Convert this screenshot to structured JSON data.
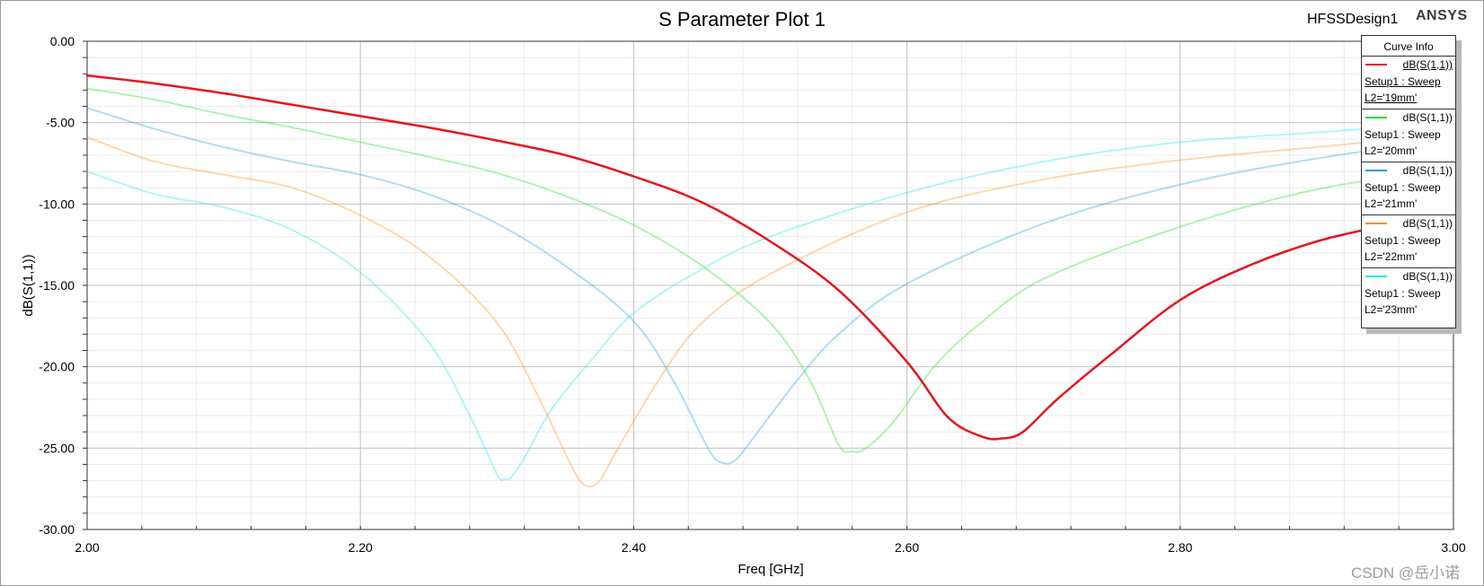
{
  "header": {
    "title": "S Parameter Plot 1",
    "design": "HFSSDesign1",
    "brand": "ANSYS"
  },
  "watermark": "CSDN @岳小诺",
  "legend": {
    "title": "Curve Info",
    "items": [
      {
        "name": "dB(S(1,1))",
        "line1": "Setup1 : Sweep",
        "line2": "L2='19mm'",
        "color": "#e8141c",
        "selected": true
      },
      {
        "name": "dB(S(1,1))",
        "line1": "Setup1 : Sweep",
        "line2": "L2='20mm'",
        "color": "#1edc1e",
        "selected": false
      },
      {
        "name": "dB(S(1,1))",
        "line1": "Setup1 : Sweep",
        "line2": "L2='21mm'",
        "color": "#1e9ed8",
        "selected": false
      },
      {
        "name": "dB(S(1,1))",
        "line1": "Setup1 : Sweep",
        "line2": "L2='22mm'",
        "color": "#ff8c1a",
        "selected": false
      },
      {
        "name": "dB(S(1,1))",
        "line1": "Setup1 : Sweep",
        "line2": "L2='23mm'",
        "color": "#1ee6e6",
        "selected": false
      }
    ]
  },
  "chart_data": {
    "type": "line",
    "title": "S Parameter Plot 1",
    "xlabel": "Freq [GHz]",
    "ylabel": "dB(S(1,1))",
    "xlim": [
      2.0,
      3.0
    ],
    "ylim": [
      -30.0,
      0.0
    ],
    "x_ticks": [
      "2.00",
      "2.20",
      "2.40",
      "2.60",
      "2.80",
      "3.00"
    ],
    "y_ticks": [
      "0.00",
      "-5.00",
      "-10.00",
      "-15.00",
      "-20.00",
      "-25.00",
      "-30.00"
    ],
    "grid": true,
    "legend_position": "top-right",
    "series": [
      {
        "name": "dB(S(1,1)) Setup1 : Sweep L2='23mm'",
        "color": "#1ee6e6",
        "faded": true,
        "points": [
          [
            2.0,
            -8.0
          ],
          [
            2.05,
            -9.4
          ],
          [
            2.1,
            -10.2
          ],
          [
            2.15,
            -11.6
          ],
          [
            2.2,
            -14.2
          ],
          [
            2.25,
            -18.5
          ],
          [
            2.28,
            -23.0
          ],
          [
            2.3,
            -26.6
          ],
          [
            2.305,
            -26.9
          ],
          [
            2.31,
            -26.8
          ],
          [
            2.32,
            -25.6
          ],
          [
            2.34,
            -22.6
          ],
          [
            2.37,
            -19.5
          ],
          [
            2.4,
            -16.7
          ],
          [
            2.45,
            -14.0
          ],
          [
            2.5,
            -12.0
          ],
          [
            2.6,
            -9.3
          ],
          [
            2.7,
            -7.4
          ],
          [
            2.8,
            -6.2
          ],
          [
            2.9,
            -5.6
          ],
          [
            3.0,
            -5.0
          ]
        ]
      },
      {
        "name": "dB(S(1,1)) Setup1 : Sweep L2='22mm'",
        "color": "#ff8c1a",
        "faded": true,
        "points": [
          [
            2.0,
            -5.9
          ],
          [
            2.05,
            -7.4
          ],
          [
            2.1,
            -8.2
          ],
          [
            2.15,
            -9.0
          ],
          [
            2.2,
            -10.7
          ],
          [
            2.25,
            -13.2
          ],
          [
            2.3,
            -17.3
          ],
          [
            2.33,
            -21.8
          ],
          [
            2.355,
            -26.2
          ],
          [
            2.365,
            -27.3
          ],
          [
            2.375,
            -27.0
          ],
          [
            2.39,
            -24.8
          ],
          [
            2.42,
            -20.6
          ],
          [
            2.45,
            -17.3
          ],
          [
            2.5,
            -14.3
          ],
          [
            2.6,
            -10.5
          ],
          [
            2.7,
            -8.5
          ],
          [
            2.8,
            -7.3
          ],
          [
            2.9,
            -6.5
          ],
          [
            3.0,
            -5.7
          ]
        ]
      },
      {
        "name": "dB(S(1,1)) Setup1 : Sweep L2='21mm'",
        "color": "#1e9ed8",
        "faded": true,
        "points": [
          [
            2.0,
            -4.1
          ],
          [
            2.05,
            -5.4
          ],
          [
            2.1,
            -6.5
          ],
          [
            2.15,
            -7.4
          ],
          [
            2.2,
            -8.2
          ],
          [
            2.25,
            -9.4
          ],
          [
            2.3,
            -11.2
          ],
          [
            2.35,
            -13.8
          ],
          [
            2.4,
            -17.2
          ],
          [
            2.43,
            -21.0
          ],
          [
            2.455,
            -25.1
          ],
          [
            2.465,
            -25.9
          ],
          [
            2.475,
            -25.7
          ],
          [
            2.49,
            -24.1
          ],
          [
            2.52,
            -20.8
          ],
          [
            2.55,
            -18.0
          ],
          [
            2.6,
            -14.9
          ],
          [
            2.7,
            -11.2
          ],
          [
            2.8,
            -8.8
          ],
          [
            2.9,
            -7.2
          ],
          [
            3.0,
            -6.0
          ]
        ]
      },
      {
        "name": "dB(S(1,1)) Setup1 : Sweep L2='20mm'",
        "color": "#1edc1e",
        "faded": true,
        "points": [
          [
            2.0,
            -2.9
          ],
          [
            2.05,
            -3.6
          ],
          [
            2.1,
            -4.5
          ],
          [
            2.15,
            -5.3
          ],
          [
            2.2,
            -6.2
          ],
          [
            2.25,
            -7.1
          ],
          [
            2.3,
            -8.1
          ],
          [
            2.35,
            -9.5
          ],
          [
            2.4,
            -11.3
          ],
          [
            2.45,
            -13.8
          ],
          [
            2.5,
            -17.3
          ],
          [
            2.53,
            -21.0
          ],
          [
            2.55,
            -24.8
          ],
          [
            2.56,
            -25.2
          ],
          [
            2.57,
            -25.0
          ],
          [
            2.59,
            -23.4
          ],
          [
            2.62,
            -20.0
          ],
          [
            2.65,
            -17.6
          ],
          [
            2.7,
            -14.6
          ],
          [
            2.8,
            -11.4
          ],
          [
            2.9,
            -9.1
          ],
          [
            3.0,
            -7.8
          ]
        ]
      },
      {
        "name": "dB(S(1,1)) Setup1 : Sweep L2='19mm'",
        "color": "#e8141c",
        "faded": false,
        "points": [
          [
            2.0,
            -2.1
          ],
          [
            2.05,
            -2.6
          ],
          [
            2.1,
            -3.2
          ],
          [
            2.15,
            -3.9
          ],
          [
            2.2,
            -4.6
          ],
          [
            2.25,
            -5.3
          ],
          [
            2.3,
            -6.1
          ],
          [
            2.35,
            -7.0
          ],
          [
            2.4,
            -8.3
          ],
          [
            2.45,
            -9.9
          ],
          [
            2.5,
            -12.3
          ],
          [
            2.55,
            -15.3
          ],
          [
            2.6,
            -19.7
          ],
          [
            2.63,
            -23.1
          ],
          [
            2.655,
            -24.3
          ],
          [
            2.67,
            -24.4
          ],
          [
            2.685,
            -24.0
          ],
          [
            2.71,
            -22.0
          ],
          [
            2.75,
            -19.2
          ],
          [
            2.8,
            -15.9
          ],
          [
            2.85,
            -13.8
          ],
          [
            2.9,
            -12.3
          ],
          [
            2.95,
            -11.3
          ],
          [
            3.0,
            -10.3
          ]
        ]
      }
    ]
  }
}
